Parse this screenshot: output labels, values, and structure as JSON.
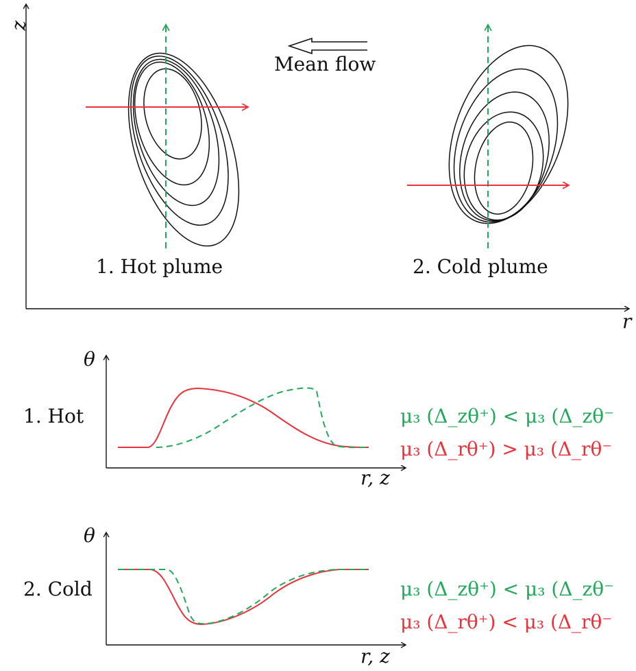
{
  "top_panel": {
    "axis_x_label": "r",
    "axis_y_label": "z",
    "mean_flow_label": "Mean flow",
    "hot_plume_label": "1. Hot plume",
    "cold_plume_label": "2. Cold plume"
  },
  "hot_panel": {
    "row_label": "1. Hot",
    "y_label": "θ",
    "x_label": "r, z",
    "eq_z": "μ₃ (Δ_zθ⁺) < μ₃ (Δ_zθ⁻",
    "eq_r": "μ₃ (Δ_rθ⁺) > μ₃ (Δ_rθ⁻"
  },
  "cold_panel": {
    "row_label": "2. Cold",
    "y_label": "θ",
    "x_label": "r, z",
    "eq_z": "μ₃ (Δ_zθ⁺) < μ₃ (Δ_zθ⁻",
    "eq_r": "μ₃ (Δ_rθ⁺) < μ₃ (Δ_rθ⁻"
  },
  "colors": {
    "axis": "#111111",
    "contour": "#111111",
    "radial": "#e8323c",
    "vertical": "#22a85a"
  }
}
